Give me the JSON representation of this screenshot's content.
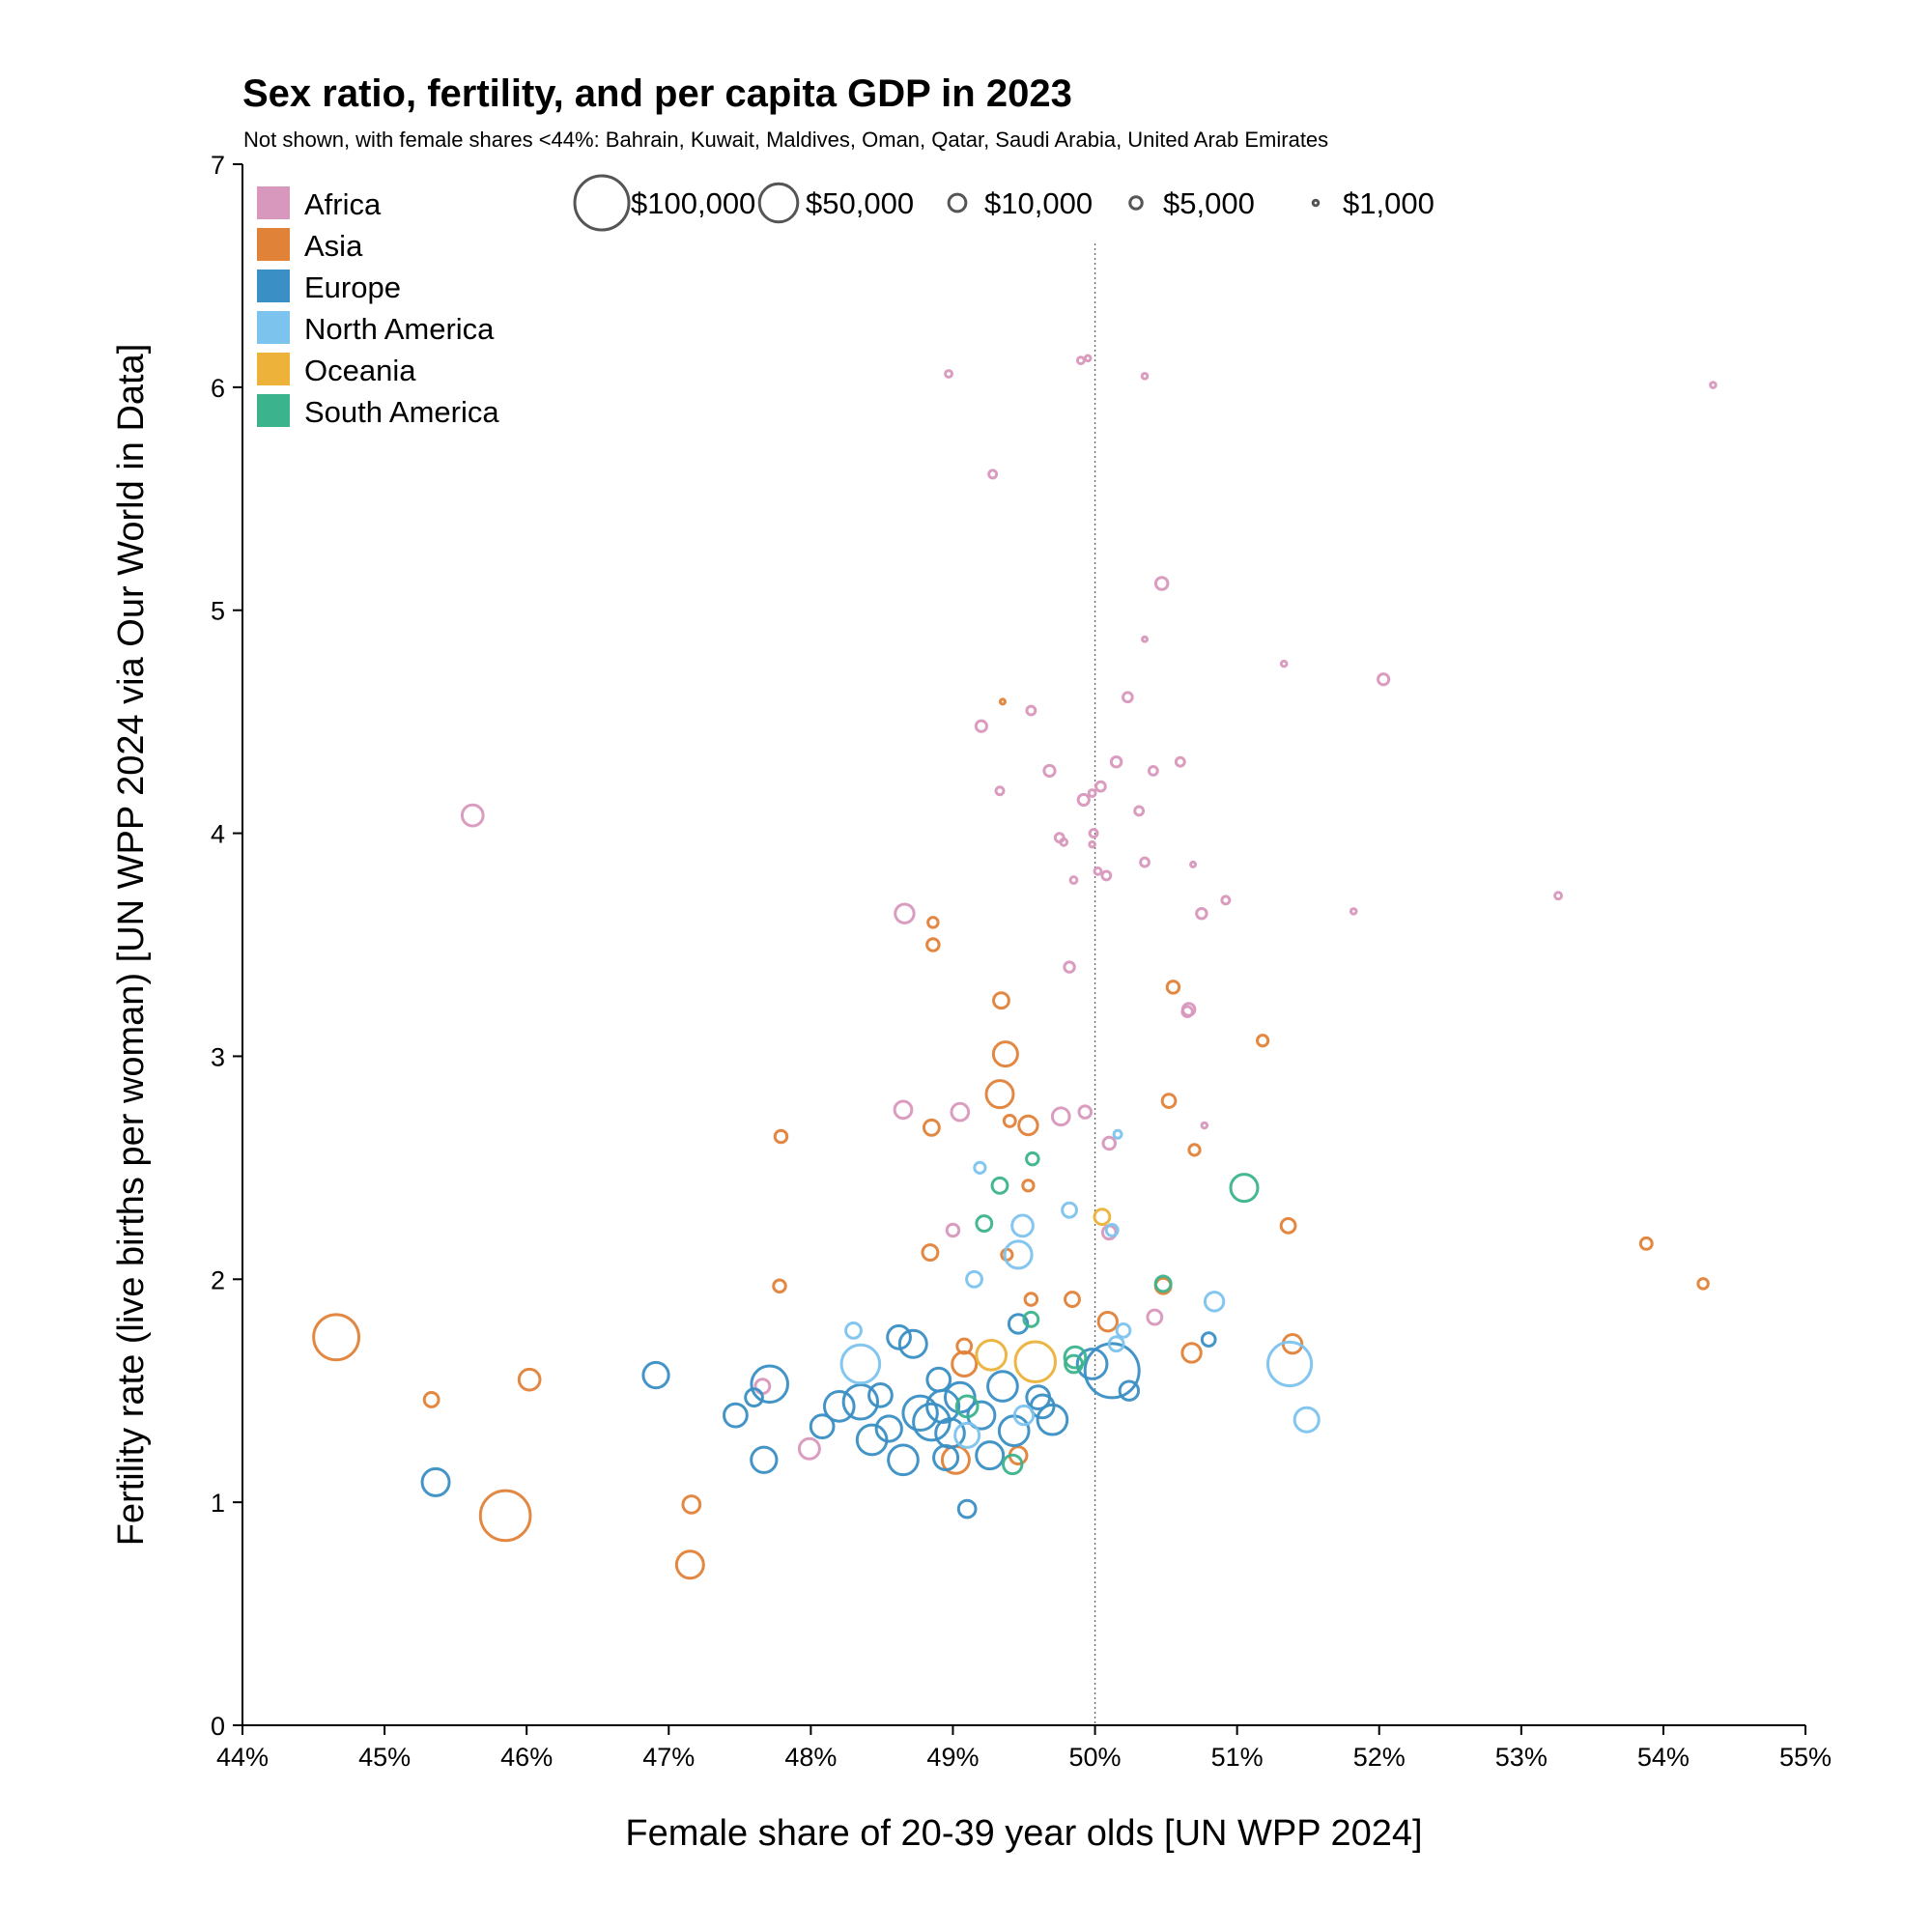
{
  "chart_data": {
    "type": "scatter",
    "title": "Sex ratio, fertility, and per capita GDP in 2023",
    "subtitle": "Not shown, with female shares <44%: Bahrain, Kuwait, Maldives, Oman, Qatar, Saudi Arabia, United Arab Emirates",
    "xlabel": "Female share of 20-39 year olds [UN WPP 2024]",
    "ylabel": "Fertility rate (live births per woman) [UN WPP 2024 via Our World in Data]",
    "xlim": [
      44,
      55
    ],
    "ylim": [
      0,
      7
    ],
    "x_ticks": [
      44,
      45,
      46,
      47,
      48,
      49,
      50,
      51,
      52,
      53,
      54,
      55
    ],
    "x_tick_labels": [
      "44%",
      "45%",
      "46%",
      "47%",
      "48%",
      "49%",
      "50%",
      "51%",
      "52%",
      "53%",
      "54%",
      "55%"
    ],
    "y_ticks": [
      0,
      1,
      2,
      3,
      4,
      5,
      6,
      7
    ],
    "y_tick_labels": [
      "0",
      "1",
      "2",
      "3",
      "4",
      "5",
      "6",
      "7"
    ],
    "reference_line_x": 50,
    "grid": false,
    "legend_placement": "top-left",
    "regions": [
      {
        "name": "Africa",
        "color": "#d898bd"
      },
      {
        "name": "Asia",
        "color": "#e08238"
      },
      {
        "name": "Europe",
        "color": "#3a8fc4"
      },
      {
        "name": "North America",
        "color": "#7cc3ee"
      },
      {
        "name": "Oceania",
        "color": "#ecb23a"
      },
      {
        "name": "South America",
        "color": "#3bb38c"
      }
    ],
    "size_legend": [
      {
        "gdp": 100000,
        "label": "$100,000"
      },
      {
        "gdp": 50000,
        "label": "$50,000"
      },
      {
        "gdp": 10000,
        "label": "$10,000"
      },
      {
        "gdp": 5000,
        "label": "$5,000"
      },
      {
        "gdp": 1000,
        "label": "$1,000"
      }
    ],
    "size_encoding": "per capita GDP (bubble area)",
    "points": [
      {
        "region": "Africa",
        "x": 48.97,
        "y": 6.06,
        "gdp": 1500
      },
      {
        "region": "Africa",
        "x": 49.9,
        "y": 6.12,
        "gdp": 1500
      },
      {
        "region": "Africa",
        "x": 49.95,
        "y": 6.13,
        "gdp": 1000
      },
      {
        "region": "Africa",
        "x": 50.35,
        "y": 6.05,
        "gdp": 1000
      },
      {
        "region": "Africa",
        "x": 54.35,
        "y": 6.01,
        "gdp": 1000
      },
      {
        "region": "Africa",
        "x": 49.28,
        "y": 5.61,
        "gdp": 2000
      },
      {
        "region": "Africa",
        "x": 50.47,
        "y": 5.12,
        "gdp": 5000
      },
      {
        "region": "Africa",
        "x": 50.35,
        "y": 4.87,
        "gdp": 700
      },
      {
        "region": "Africa",
        "x": 51.33,
        "y": 4.76,
        "gdp": 1000
      },
      {
        "region": "Africa",
        "x": 52.03,
        "y": 4.69,
        "gdp": 4000
      },
      {
        "region": "Africa",
        "x": 50.23,
        "y": 4.61,
        "gdp": 3000
      },
      {
        "region": "Africa",
        "x": 49.2,
        "y": 4.48,
        "gdp": 4000
      },
      {
        "region": "Africa",
        "x": 49.55,
        "y": 4.55,
        "gdp": 2500
      },
      {
        "region": "Africa",
        "x": 45.62,
        "y": 4.08,
        "gdp": 15000
      },
      {
        "region": "Africa",
        "x": 49.68,
        "y": 4.28,
        "gdp": 4000
      },
      {
        "region": "Africa",
        "x": 49.33,
        "y": 4.19,
        "gdp": 2000
      },
      {
        "region": "Africa",
        "x": 50.15,
        "y": 4.32,
        "gdp": 3500
      },
      {
        "region": "Africa",
        "x": 50.41,
        "y": 4.28,
        "gdp": 2500
      },
      {
        "region": "Africa",
        "x": 50.6,
        "y": 4.32,
        "gdp": 2500
      },
      {
        "region": "Africa",
        "x": 50.04,
        "y": 4.21,
        "gdp": 3000
      },
      {
        "region": "Africa",
        "x": 49.98,
        "y": 4.18,
        "gdp": 1500
      },
      {
        "region": "Africa",
        "x": 49.92,
        "y": 4.15,
        "gdp": 4000
      },
      {
        "region": "Africa",
        "x": 50.31,
        "y": 4.1,
        "gdp": 2500
      },
      {
        "region": "Africa",
        "x": 49.75,
        "y": 3.98,
        "gdp": 2500
      },
      {
        "region": "Africa",
        "x": 49.78,
        "y": 3.96,
        "gdp": 1500
      },
      {
        "region": "Africa",
        "x": 49.99,
        "y": 4.0,
        "gdp": 2000
      },
      {
        "region": "Africa",
        "x": 49.98,
        "y": 3.95,
        "gdp": 1000
      },
      {
        "region": "Africa",
        "x": 50.69,
        "y": 3.86,
        "gdp": 700
      },
      {
        "region": "Africa",
        "x": 50.35,
        "y": 3.87,
        "gdp": 2500
      },
      {
        "region": "Africa",
        "x": 50.02,
        "y": 3.83,
        "gdp": 1500
      },
      {
        "region": "Africa",
        "x": 50.08,
        "y": 3.81,
        "gdp": 2500
      },
      {
        "region": "Africa",
        "x": 49.85,
        "y": 3.79,
        "gdp": 1500
      },
      {
        "region": "Africa",
        "x": 50.92,
        "y": 3.7,
        "gdp": 2000
      },
      {
        "region": "Africa",
        "x": 50.75,
        "y": 3.64,
        "gdp": 3500
      },
      {
        "region": "Africa",
        "x": 48.66,
        "y": 3.64,
        "gdp": 12000
      },
      {
        "region": "Africa",
        "x": 51.82,
        "y": 3.65,
        "gdp": 1000
      },
      {
        "region": "Africa",
        "x": 53.26,
        "y": 3.72,
        "gdp": 1500
      },
      {
        "region": "Africa",
        "x": 49.82,
        "y": 3.4,
        "gdp": 3500
      },
      {
        "region": "Africa",
        "x": 50.66,
        "y": 3.21,
        "gdp": 5000
      },
      {
        "region": "Africa",
        "x": 50.65,
        "y": 3.2,
        "gdp": 3500
      },
      {
        "region": "Africa",
        "x": 48.65,
        "y": 2.76,
        "gdp": 10000
      },
      {
        "region": "Africa",
        "x": 49.05,
        "y": 2.75,
        "gdp": 10000
      },
      {
        "region": "Africa",
        "x": 49.76,
        "y": 2.73,
        "gdp": 10000
      },
      {
        "region": "Africa",
        "x": 49.93,
        "y": 2.75,
        "gdp": 5000
      },
      {
        "region": "Africa",
        "x": 50.77,
        "y": 2.69,
        "gdp": 1000
      },
      {
        "region": "Africa",
        "x": 50.1,
        "y": 2.61,
        "gdp": 5000
      },
      {
        "region": "Africa",
        "x": 49.0,
        "y": 2.22,
        "gdp": 5000
      },
      {
        "region": "Africa",
        "x": 50.1,
        "y": 2.21,
        "gdp": 6000
      },
      {
        "region": "Africa",
        "x": 50.42,
        "y": 1.83,
        "gdp": 7000
      },
      {
        "region": "Africa",
        "x": 47.66,
        "y": 1.52,
        "gdp": 7000
      },
      {
        "region": "Africa",
        "x": 47.99,
        "y": 1.24,
        "gdp": 14000
      },
      {
        "region": "Asia",
        "x": 49.35,
        "y": 4.59,
        "gdp": 500
      },
      {
        "region": "Asia",
        "x": 48.86,
        "y": 3.6,
        "gdp": 3500
      },
      {
        "region": "Asia",
        "x": 48.86,
        "y": 3.5,
        "gdp": 5000
      },
      {
        "region": "Asia",
        "x": 50.55,
        "y": 3.31,
        "gdp": 5000
      },
      {
        "region": "Asia",
        "x": 49.34,
        "y": 3.25,
        "gdp": 8000
      },
      {
        "region": "Asia",
        "x": 51.18,
        "y": 3.07,
        "gdp": 4000
      },
      {
        "region": "Asia",
        "x": 49.37,
        "y": 3.01,
        "gdp": 20000
      },
      {
        "region": "Asia",
        "x": 49.33,
        "y": 2.83,
        "gdp": 25000
      },
      {
        "region": "Asia",
        "x": 50.52,
        "y": 2.8,
        "gdp": 6000
      },
      {
        "region": "Asia",
        "x": 49.4,
        "y": 2.71,
        "gdp": 4500
      },
      {
        "region": "Asia",
        "x": 49.53,
        "y": 2.69,
        "gdp": 12000
      },
      {
        "region": "Asia",
        "x": 48.85,
        "y": 2.68,
        "gdp": 8000
      },
      {
        "region": "Asia",
        "x": 47.79,
        "y": 2.64,
        "gdp": 5000
      },
      {
        "region": "Asia",
        "x": 50.7,
        "y": 2.58,
        "gdp": 4000
      },
      {
        "region": "Asia",
        "x": 49.53,
        "y": 2.42,
        "gdp": 4000
      },
      {
        "region": "Asia",
        "x": 51.36,
        "y": 2.24,
        "gdp": 7000
      },
      {
        "region": "Asia",
        "x": 53.88,
        "y": 2.16,
        "gdp": 4500
      },
      {
        "region": "Asia",
        "x": 48.84,
        "y": 2.12,
        "gdp": 8000
      },
      {
        "region": "Asia",
        "x": 49.38,
        "y": 2.11,
        "gdp": 4000
      },
      {
        "region": "Asia",
        "x": 47.78,
        "y": 1.97,
        "gdp": 5000
      },
      {
        "region": "Asia",
        "x": 54.28,
        "y": 1.98,
        "gdp": 3500
      },
      {
        "region": "Asia",
        "x": 49.55,
        "y": 1.91,
        "gdp": 5000
      },
      {
        "region": "Asia",
        "x": 49.84,
        "y": 1.91,
        "gdp": 7000
      },
      {
        "region": "Asia",
        "x": 50.48,
        "y": 1.97,
        "gdp": 8000
      },
      {
        "region": "Asia",
        "x": 50.09,
        "y": 1.81,
        "gdp": 12000
      },
      {
        "region": "Asia",
        "x": 44.66,
        "y": 1.74,
        "gdp": 70000
      },
      {
        "region": "Asia",
        "x": 49.08,
        "y": 1.7,
        "gdp": 7000
      },
      {
        "region": "Asia",
        "x": 51.39,
        "y": 1.71,
        "gdp": 12000
      },
      {
        "region": "Asia",
        "x": 50.68,
        "y": 1.67,
        "gdp": 12000
      },
      {
        "region": "Asia",
        "x": 49.08,
        "y": 1.62,
        "gdp": 20000
      },
      {
        "region": "Asia",
        "x": 45.33,
        "y": 1.46,
        "gdp": 7000
      },
      {
        "region": "Asia",
        "x": 46.02,
        "y": 1.55,
        "gdp": 15000
      },
      {
        "region": "Asia",
        "x": 49.02,
        "y": 1.19,
        "gdp": 25000
      },
      {
        "region": "Asia",
        "x": 49.46,
        "y": 1.21,
        "gdp": 10000
      },
      {
        "region": "Asia",
        "x": 47.16,
        "y": 0.99,
        "gdp": 10000
      },
      {
        "region": "Asia",
        "x": 45.85,
        "y": 0.94,
        "gdp": 85000
      },
      {
        "region": "Asia",
        "x": 47.15,
        "y": 0.72,
        "gdp": 25000
      },
      {
        "region": "Europe",
        "x": 45.36,
        "y": 1.09,
        "gdp": 25000
      },
      {
        "region": "Europe",
        "x": 46.91,
        "y": 1.57,
        "gdp": 22000
      },
      {
        "region": "Europe",
        "x": 47.47,
        "y": 1.39,
        "gdp": 18000
      },
      {
        "region": "Europe",
        "x": 47.6,
        "y": 1.47,
        "gdp": 10000
      },
      {
        "region": "Europe",
        "x": 47.71,
        "y": 1.53,
        "gdp": 45000
      },
      {
        "region": "Europe",
        "x": 47.67,
        "y": 1.19,
        "gdp": 22000
      },
      {
        "region": "Europe",
        "x": 48.08,
        "y": 1.34,
        "gdp": 18000
      },
      {
        "region": "Europe",
        "x": 48.2,
        "y": 1.43,
        "gdp": 30000
      },
      {
        "region": "Europe",
        "x": 48.35,
        "y": 1.45,
        "gdp": 40000
      },
      {
        "region": "Europe",
        "x": 48.43,
        "y": 1.28,
        "gdp": 30000
      },
      {
        "region": "Europe",
        "x": 48.49,
        "y": 1.48,
        "gdp": 18000
      },
      {
        "region": "Europe",
        "x": 48.55,
        "y": 1.33,
        "gdp": 22000
      },
      {
        "region": "Europe",
        "x": 48.62,
        "y": 1.74,
        "gdp": 18000
      },
      {
        "region": "Europe",
        "x": 48.72,
        "y": 1.71,
        "gdp": 25000
      },
      {
        "region": "Europe",
        "x": 48.65,
        "y": 1.19,
        "gdp": 30000
      },
      {
        "region": "Europe",
        "x": 48.77,
        "y": 1.4,
        "gdp": 40000
      },
      {
        "region": "Europe",
        "x": 48.85,
        "y": 1.36,
        "gdp": 45000
      },
      {
        "region": "Europe",
        "x": 48.9,
        "y": 1.55,
        "gdp": 18000
      },
      {
        "region": "Europe",
        "x": 48.93,
        "y": 1.43,
        "gdp": 35000
      },
      {
        "region": "Europe",
        "x": 48.95,
        "y": 1.2,
        "gdp": 20000
      },
      {
        "region": "Europe",
        "x": 48.98,
        "y": 1.31,
        "gdp": 28000
      },
      {
        "region": "Europe",
        "x": 49.05,
        "y": 1.47,
        "gdp": 30000
      },
      {
        "region": "Europe",
        "x": 49.1,
        "y": 0.97,
        "gdp": 10000
      },
      {
        "region": "Europe",
        "x": 49.2,
        "y": 1.39,
        "gdp": 25000
      },
      {
        "region": "Europe",
        "x": 49.26,
        "y": 1.21,
        "gdp": 25000
      },
      {
        "region": "Europe",
        "x": 49.35,
        "y": 1.52,
        "gdp": 30000
      },
      {
        "region": "Europe",
        "x": 49.43,
        "y": 1.32,
        "gdp": 30000
      },
      {
        "region": "Europe",
        "x": 49.46,
        "y": 1.8,
        "gdp": 12000
      },
      {
        "region": "Europe",
        "x": 49.6,
        "y": 1.47,
        "gdp": 18000
      },
      {
        "region": "Europe",
        "x": 49.63,
        "y": 1.43,
        "gdp": 18000
      },
      {
        "region": "Europe",
        "x": 49.7,
        "y": 1.37,
        "gdp": 30000
      },
      {
        "region": "Europe",
        "x": 49.98,
        "y": 1.62,
        "gdp": 30000
      },
      {
        "region": "Europe",
        "x": 50.12,
        "y": 1.59,
        "gdp": 100000
      },
      {
        "region": "Europe",
        "x": 50.24,
        "y": 1.5,
        "gdp": 12000
      },
      {
        "region": "Europe",
        "x": 50.8,
        "y": 1.73,
        "gdp": 6000
      },
      {
        "region": "North America",
        "x": 48.3,
        "y": 1.77,
        "gdp": 8000
      },
      {
        "region": "North America",
        "x": 48.35,
        "y": 1.62,
        "gdp": 50000
      },
      {
        "region": "North America",
        "x": 49.19,
        "y": 2.5,
        "gdp": 4000
      },
      {
        "region": "North America",
        "x": 50.16,
        "y": 2.65,
        "gdp": 2000
      },
      {
        "region": "North America",
        "x": 49.82,
        "y": 2.31,
        "gdp": 7000
      },
      {
        "region": "North America",
        "x": 49.49,
        "y": 2.24,
        "gdp": 15000
      },
      {
        "region": "North America",
        "x": 49.46,
        "y": 2.11,
        "gdp": 25000
      },
      {
        "region": "North America",
        "x": 50.12,
        "y": 2.22,
        "gdp": 4500
      },
      {
        "region": "North America",
        "x": 49.15,
        "y": 2.0,
        "gdp": 8000
      },
      {
        "region": "North America",
        "x": 50.84,
        "y": 1.9,
        "gdp": 12000
      },
      {
        "region": "North America",
        "x": 50.2,
        "y": 1.77,
        "gdp": 6000
      },
      {
        "region": "North America",
        "x": 50.15,
        "y": 1.71,
        "gdp": 7000
      },
      {
        "region": "North America",
        "x": 51.37,
        "y": 1.62,
        "gdp": 65000
      },
      {
        "region": "North America",
        "x": 51.49,
        "y": 1.37,
        "gdp": 20000
      },
      {
        "region": "North America",
        "x": 49.5,
        "y": 1.39,
        "gdp": 12000
      },
      {
        "region": "North America",
        "x": 49.1,
        "y": 1.3,
        "gdp": 20000
      },
      {
        "region": "Oceania",
        "x": 50.05,
        "y": 2.28,
        "gdp": 8000
      },
      {
        "region": "Oceania",
        "x": 49.27,
        "y": 1.66,
        "gdp": 30000
      },
      {
        "region": "Oceania",
        "x": 49.58,
        "y": 1.63,
        "gdp": 55000
      },
      {
        "region": "South America",
        "x": 49.56,
        "y": 2.54,
        "gdp": 5000
      },
      {
        "region": "South America",
        "x": 49.33,
        "y": 2.42,
        "gdp": 8000
      },
      {
        "region": "South America",
        "x": 49.22,
        "y": 2.25,
        "gdp": 8000
      },
      {
        "region": "South America",
        "x": 51.05,
        "y": 2.41,
        "gdp": 25000
      },
      {
        "region": "South America",
        "x": 50.48,
        "y": 1.98,
        "gdp": 8000
      },
      {
        "region": "South America",
        "x": 49.55,
        "y": 1.82,
        "gdp": 7000
      },
      {
        "region": "South America",
        "x": 49.86,
        "y": 1.65,
        "gdp": 15000
      },
      {
        "region": "South America",
        "x": 49.85,
        "y": 1.62,
        "gdp": 10000
      },
      {
        "region": "South America",
        "x": 49.1,
        "y": 1.43,
        "gdp": 15000
      },
      {
        "region": "South America",
        "x": 49.42,
        "y": 1.17,
        "gdp": 12000
      }
    ]
  }
}
